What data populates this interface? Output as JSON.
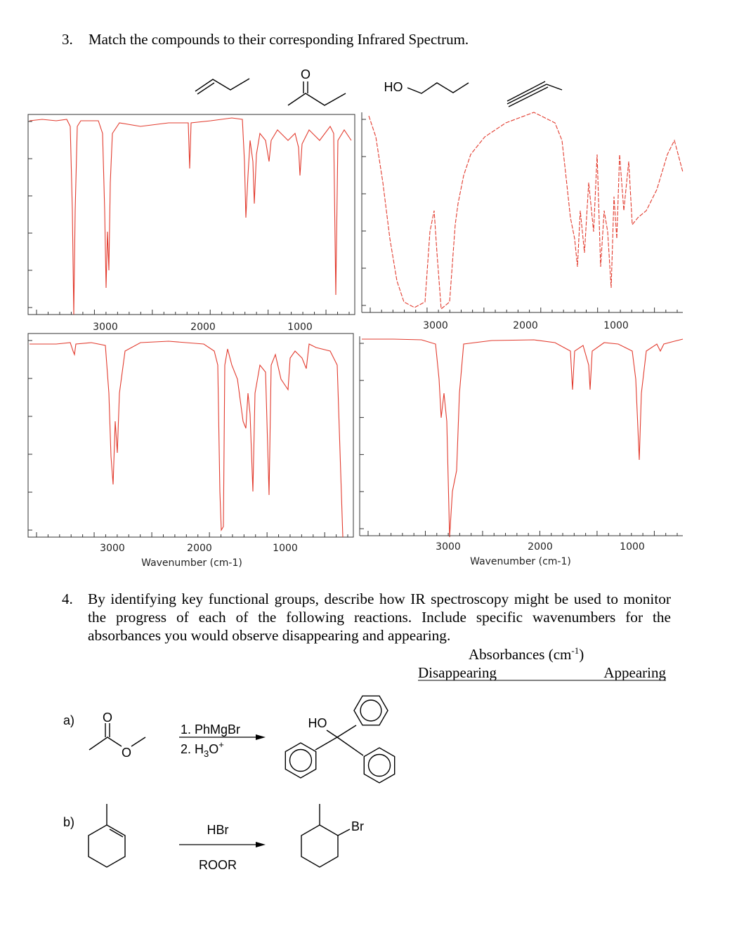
{
  "question_3": {
    "number": "3.",
    "text": "Match the compounds to their corresponding Infrared Spectrum.",
    "structure_labels": [
      "O",
      "HO"
    ],
    "spectra": [
      {
        "xticks": [
          "3000",
          "2000",
          "1000"
        ]
      },
      {
        "xticks": [
          "3000",
          "2000",
          "1000"
        ]
      },
      {
        "xticks": [
          "3000",
          "2000",
          "1000"
        ],
        "x_label": "Wavenumber (cm-1)"
      },
      {
        "xticks": [
          "3000",
          "2000",
          "1000"
        ],
        "x_label": "Wavenumber (cm-1)"
      }
    ]
  },
  "question_4": {
    "number": "4.",
    "text": "By identifying key functional groups, describe how IR spectroscopy might be used to monitor the progress of each of the following reactions. Include specific wavenumbers for the absorbances you would observe disappearing and appearing.",
    "table_header": {
      "text": "Absorbances (cm",
      "superscript": "-1",
      "suffix": ")"
    },
    "columns": [
      "Disappearing",
      "Appearing"
    ],
    "reactions": [
      {
        "label": "a)",
        "reactant_atoms": [
          "O",
          "O"
        ],
        "reagents": [
          "1. PhMgBr",
          {
            "prefix": "2. H",
            "subscript": "3",
            "middle": "O",
            "superscript": "+"
          }
        ],
        "product_atoms": [
          "HO"
        ]
      },
      {
        "label": "b)",
        "reagents": [
          "HBr",
          "ROOR"
        ],
        "product_atoms": [
          "Br"
        ]
      }
    ]
  }
}
